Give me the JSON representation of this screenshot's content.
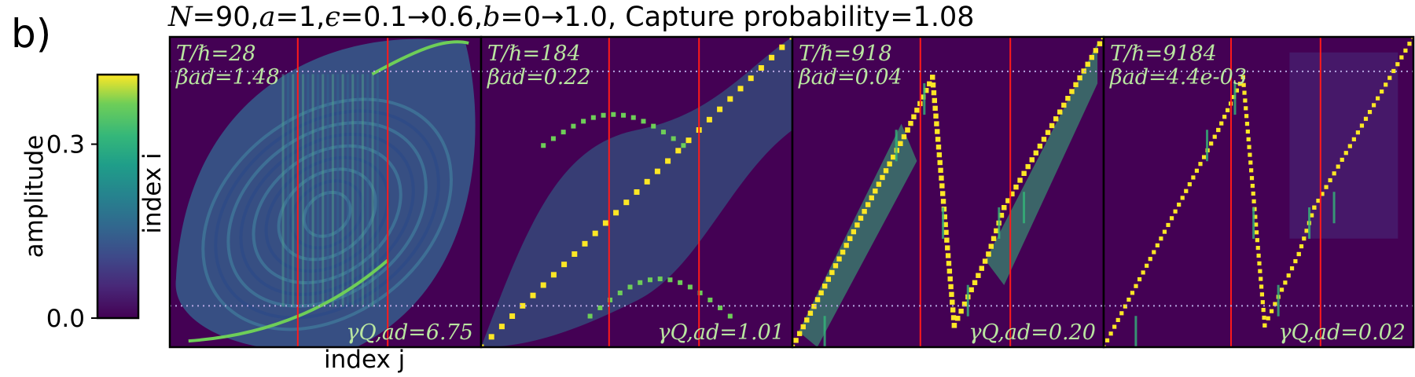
{
  "figure": {
    "panel_letter": "b)",
    "suptitle": {
      "N": "N",
      "N_val": "=90,",
      "a": "a",
      "a_val": "=1,",
      "eps": "ϵ",
      "eps_val": "=0.1→0.6,",
      "b": "b",
      "b_val": "=0→1.0,",
      "rest": " Capture probability=1.08"
    },
    "y_label": "index i",
    "x_label": "index j"
  },
  "colorbar": {
    "label": "amplitude",
    "ticks": [
      "0.0",
      "0.3"
    ],
    "tick_values": [
      0.0,
      0.3
    ],
    "range": [
      0.0,
      0.42
    ],
    "colormap": "viridis"
  },
  "colors": {
    "background_cell": "#440154",
    "bright": "#fde725",
    "red_line": "#ff1a1a",
    "dotted_line": "#b6a6e0",
    "overlay_text": "#b9e6a0"
  },
  "chart_data": [
    {
      "type": "heatmap",
      "T_label": "T/ℏ=28",
      "beta_label": "βad=1.48",
      "gamma_label": "γQ,ad=6.75",
      "T": 28,
      "beta_ad": 1.48,
      "gamma_Q_ad": 6.75,
      "pattern": "lens",
      "N": 90,
      "red_lines_j": [
        37,
        63
      ],
      "dotted_lines_i": [
        12,
        80
      ]
    },
    {
      "type": "heatmap",
      "T_label": "T/ℏ=184",
      "beta_label": "βad=0.22",
      "gamma_label": "γQ,ad=1.01",
      "T": 184,
      "beta_ad": 0.22,
      "gamma_Q_ad": 1.01,
      "pattern": "s-curve",
      "N": 90,
      "red_lines_j": [
        37,
        63
      ],
      "dotted_lines_i": [
        12,
        80
      ]
    },
    {
      "type": "heatmap",
      "T_label": "T/ℏ=918",
      "beta_label": "βad=0.04",
      "gamma_label": "γQ,ad=0.20",
      "T": 918,
      "beta_ad": 0.04,
      "gamma_Q_ad": 0.2,
      "pattern": "z-path",
      "N": 90,
      "red_lines_j": [
        37,
        63
      ],
      "dotted_lines_i": [
        12,
        80
      ]
    },
    {
      "type": "heatmap",
      "T_label": "T/ℏ=9184",
      "beta_label": "βad=4.4e-03",
      "gamma_label": "γQ,ad=0.02",
      "T": 9184,
      "beta_ad": 0.0044,
      "gamma_Q_ad": 0.02,
      "pattern": "z-path-sharp",
      "N": 90,
      "red_lines_j": [
        37,
        63
      ],
      "dotted_lines_i": [
        12,
        80
      ]
    }
  ]
}
